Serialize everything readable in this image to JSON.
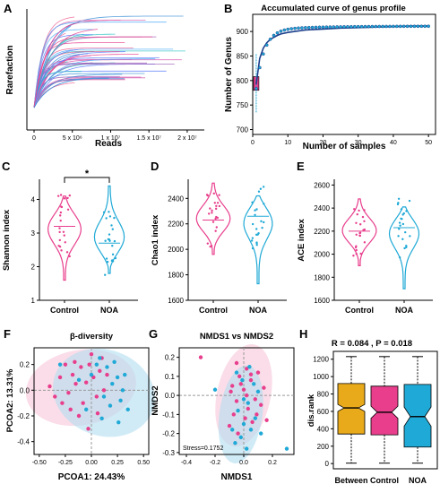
{
  "colors": {
    "control": "#e83e8c",
    "noa": "#1fa9d6",
    "between": "#e8a91a",
    "ellipse_control": "#f6c7d9",
    "ellipse_noa": "#b3def0",
    "curve_dark": "#1b3f8b",
    "axis": "#000000"
  },
  "chart_data": [
    {
      "panel": "A",
      "type": "line",
      "title": "",
      "xlabel": "Reads",
      "ylabel": "Rarefaction",
      "xticks": [
        "0",
        "5 x 10⁶",
        "1 x 10⁷",
        "1.5 x 10⁷",
        "2 x 10⁷"
      ],
      "xlim": [
        0,
        22000000
      ],
      "n_curves": 50,
      "note_values": "rarefaction curves rise steeply then plateau; y axis has no tick labels"
    },
    {
      "panel": "B",
      "type": "line",
      "title": "Accumulated curve of genus profile",
      "xlabel": "Number of samples",
      "ylabel": "Number of Genus",
      "xticks": [
        "0",
        "10",
        "20",
        "30",
        "40",
        "50"
      ],
      "yticks": [
        "700",
        "750",
        "800",
        "850",
        "900"
      ],
      "xlim": [
        0,
        52
      ],
      "ylim": [
        690,
        935
      ],
      "x": [
        1,
        2,
        3,
        4,
        5,
        6,
        7,
        8,
        10,
        12,
        15,
        20,
        25,
        30,
        35,
        40,
        45,
        50
      ],
      "y": [
        792,
        845,
        866,
        877,
        884,
        888,
        892,
        895,
        898,
        900,
        903,
        905,
        907,
        908,
        909,
        910,
        911,
        911
      ]
    },
    {
      "panel": "C",
      "type": "violin",
      "ylabel": "Shannon index",
      "categories": [
        "Control",
        "NOA"
      ],
      "yticks": [
        "1",
        "2",
        "3",
        "4"
      ],
      "ylim": [
        1,
        4.6
      ],
      "significance": "*",
      "series": [
        {
          "name": "Control",
          "min": 1.6,
          "max": 4.1,
          "median": 3.2
        },
        {
          "name": "NOA",
          "min": 1.8,
          "max": 4.4,
          "median": 2.7
        }
      ]
    },
    {
      "panel": "D",
      "type": "violin",
      "ylabel": "Chao1 index",
      "categories": [
        "Control",
        "NOA"
      ],
      "yticks": [
        "1600",
        "1800",
        "2000",
        "2200",
        "2400"
      ],
      "ylim": [
        1600,
        2550
      ],
      "series": [
        {
          "name": "Control",
          "min": 1960,
          "max": 2520,
          "median": 2230
        },
        {
          "name": "NOA",
          "min": 1730,
          "max": 2420,
          "median": 2260
        }
      ]
    },
    {
      "panel": "E",
      "type": "violin",
      "ylabel": "ACE index",
      "categories": [
        "Control",
        "NOA"
      ],
      "yticks": [
        "1600",
        "1800",
        "2000",
        "2200",
        "2400",
        "2600"
      ],
      "ylim": [
        1600,
        2650
      ],
      "series": [
        {
          "name": "Control",
          "min": 1900,
          "max": 2480,
          "median": 2200
        },
        {
          "name": "NOA",
          "min": 1700,
          "max": 2410,
          "median": 2230
        }
      ]
    },
    {
      "panel": "F",
      "type": "scatter",
      "title": "β-diversity",
      "xlabel": "PCOA1: 24.43%",
      "ylabel": "PCOA2: 13.31%",
      "xticks": [
        "-0.50",
        "-0.25",
        "0.00",
        "0.25",
        "0.50"
      ],
      "yticks": [
        "-0.4",
        "-0.2",
        "0.0",
        "0.2"
      ],
      "xlim": [
        -0.55,
        0.55
      ],
      "ylim": [
        -0.5,
        0.33
      ],
      "series": [
        {
          "name": "Control",
          "points": [
            [
              -0.4,
              0.03
            ],
            [
              -0.35,
              -0.05
            ],
            [
              -0.3,
              0.1
            ],
            [
              -0.22,
              -0.02
            ],
            [
              -0.18,
              0.12
            ],
            [
              -0.15,
              0.05
            ],
            [
              -0.1,
              0.18
            ],
            [
              -0.08,
              -0.1
            ],
            [
              -0.05,
              0.06
            ],
            [
              -0.02,
              0.2
            ],
            [
              0.02,
              0.1
            ],
            [
              0.05,
              -0.05
            ],
            [
              0.08,
              0.15
            ],
            [
              0.1,
              0.25
            ],
            [
              0.12,
              0.0
            ],
            [
              -0.25,
              0.2
            ],
            [
              -0.12,
              -0.2
            ],
            [
              0.0,
              0.28
            ],
            [
              -0.2,
              -0.15
            ],
            [
              0.15,
              0.12
            ],
            [
              -0.03,
              -0.3
            ],
            [
              -0.28,
              -0.1
            ],
            [
              0.06,
              -0.18
            ],
            [
              -0.16,
              0.22
            ]
          ]
        },
        {
          "name": "NOA",
          "points": [
            [
              0.2,
              0.05
            ],
            [
              0.25,
              0.1
            ],
            [
              0.3,
              0.0
            ],
            [
              0.18,
              -0.12
            ],
            [
              0.1,
              -0.22
            ],
            [
              0.05,
              0.2
            ],
            [
              0.28,
              -0.08
            ],
            [
              0.35,
              -0.15
            ],
            [
              0.22,
              0.22
            ],
            [
              0.15,
              0.18
            ],
            [
              -0.05,
              -0.15
            ],
            [
              0.0,
              0.12
            ],
            [
              0.12,
              -0.05
            ],
            [
              0.32,
              0.12
            ],
            [
              -0.3,
              0.2
            ],
            [
              0.08,
              0.25
            ],
            [
              0.26,
              -0.25
            ],
            [
              -0.12,
              0.08
            ]
          ]
        }
      ]
    },
    {
      "panel": "G",
      "type": "scatter",
      "title": "NMDS1 vs NMDS2",
      "xlabel": "NMDS1",
      "ylabel": "NMDS2",
      "annotation": "Stress=0.1752",
      "xticks": [
        "-0.4",
        "-0.2",
        "0.0",
        "0.2"
      ],
      "yticks": [
        "-0.3",
        "-0.2",
        "-0.1",
        "0.0",
        "0.1",
        "0.2"
      ],
      "xlim": [
        -0.45,
        0.35
      ],
      "ylim": [
        -0.31,
        0.25
      ],
      "series": [
        {
          "name": "Control",
          "points": [
            [
              -0.3,
              0.2
            ],
            [
              -0.05,
              0.17
            ],
            [
              0.02,
              0.14
            ],
            [
              -0.03,
              0.1
            ],
            [
              0.05,
              0.08
            ],
            [
              0.1,
              0.12
            ],
            [
              -0.08,
              0.05
            ],
            [
              0.0,
              0.03
            ],
            [
              0.08,
              -0.02
            ],
            [
              -0.05,
              -0.03
            ],
            [
              0.03,
              -0.07
            ],
            [
              0.12,
              -0.05
            ],
            [
              -0.07,
              -0.1
            ],
            [
              0.01,
              -0.12
            ],
            [
              0.06,
              -0.14
            ],
            [
              -0.1,
              -0.16
            ],
            [
              0.02,
              0.0
            ],
            [
              0.14,
              0.04
            ],
            [
              -0.02,
              0.06
            ],
            [
              0.09,
              -0.1
            ],
            [
              -0.04,
              -0.2
            ],
            [
              0.05,
              0.11
            ],
            [
              -0.09,
              0.02
            ],
            [
              0.16,
              -0.13
            ]
          ]
        },
        {
          "name": "NOA",
          "points": [
            [
              -0.2,
              0.03
            ],
            [
              -0.06,
              -0.25
            ],
            [
              -0.02,
              -0.22
            ],
            [
              0.05,
              -0.18
            ],
            [
              0.0,
              -0.15
            ],
            [
              -0.04,
              -0.08
            ],
            [
              0.03,
              -0.04
            ],
            [
              0.08,
              -0.12
            ],
            [
              -0.08,
              -0.18
            ],
            [
              0.02,
              -0.28
            ],
            [
              0.3,
              -0.28
            ],
            [
              0.1,
              0.02
            ],
            [
              -0.01,
              0.08
            ],
            [
              0.07,
              0.06
            ],
            [
              0.0,
              -0.02
            ],
            [
              -0.05,
              0.12
            ],
            [
              0.12,
              -0.2
            ],
            [
              0.04,
              0.15
            ]
          ]
        }
      ]
    },
    {
      "panel": "H",
      "type": "boxplot",
      "title": "R = 0.084 , P = 0.018",
      "ylabel": "dis.rank",
      "categories": [
        "Between",
        "Control",
        "NOA"
      ],
      "yticks": [
        "0",
        "200",
        "400",
        "600",
        "800",
        "1000",
        "1200"
      ],
      "ylim": [
        -60,
        1290
      ],
      "series": [
        {
          "name": "Between",
          "min": 5,
          "q1": 340,
          "median": 640,
          "q3": 920,
          "max": 1230,
          "notch": [
            600,
            680
          ]
        },
        {
          "name": "Control",
          "min": 5,
          "q1": 330,
          "median": 590,
          "q3": 890,
          "max": 1230,
          "notch": [
            520,
            660
          ]
        },
        {
          "name": "NOA",
          "min": 5,
          "q1": 190,
          "median": 540,
          "q3": 910,
          "max": 1230,
          "notch": [
            430,
            650
          ]
        }
      ]
    }
  ]
}
